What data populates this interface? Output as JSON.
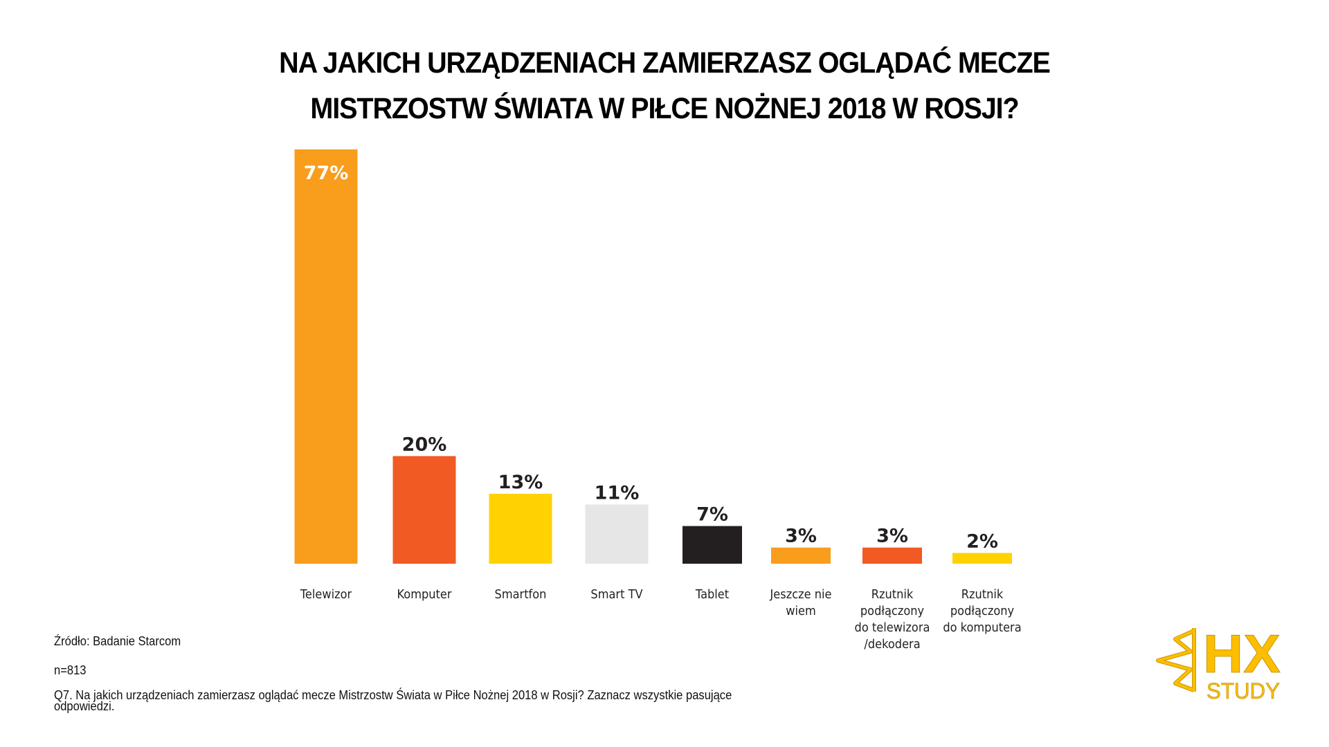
{
  "header": {
    "title_line1": "NA JAKICH URZĄDZENIACH ZAMIERZASZ OGLĄDAĆ MECZE",
    "title_line2": "MISTRZOSTW ŚWIATA W PIŁCE NOŻNEJ 2018 W ROSJI?"
  },
  "chart_data": {
    "type": "bar",
    "title": "NA JAKICH URZĄDZENIACH ZAMIERZASZ OGLĄDAĆ MECZE MISTRZOSTW ŚWIATA W PIŁCE NOŻNEJ 2018 W ROSJI?",
    "xlabel": "",
    "ylabel": "",
    "ylim": [
      0,
      77
    ],
    "grid": false,
    "unit": "%",
    "categories": [
      "Telewizor",
      "Komputer",
      "Smartfon",
      "Smart TV",
      "Tablet",
      "Jeszcze nie wiem",
      "Rzutnik podłączony do telewizora /dekodera",
      "Rzutnik podłączony do komputera"
    ],
    "category_lines": [
      [
        "Telewizor"
      ],
      [
        "Komputer"
      ],
      [
        "Smartfon"
      ],
      [
        "Smart TV"
      ],
      [
        "Tablet"
      ],
      [
        "Jeszcze nie",
        "wiem"
      ],
      [
        "Rzutnik",
        "podłączony",
        "do telewizora",
        "/dekodera"
      ],
      [
        "Rzutnik",
        "podłączony",
        "do komputera"
      ]
    ],
    "values": [
      77,
      20,
      13,
      11,
      7,
      3,
      3,
      2
    ],
    "value_labels": [
      "77%",
      "20%",
      "13%",
      "11%",
      "7%",
      "3%",
      "3%",
      "2%"
    ],
    "colors": [
      "#F99D1C",
      "#F15A22",
      "#FFD200",
      "#E6E6E6",
      "#231F20",
      "#F99D1C",
      "#F15A22",
      "#FFD200"
    ],
    "label_inside_first": true
  },
  "footer": {
    "source": "Źródło: Badanie Starcom",
    "sample": "n=813",
    "question_line1": "Q7. Na jakich urządzeniach zamierzasz oglądać mecze Mistrzostw Świata w Piłce Nożnej 2018 w Rosji? Zaznacz wszystkie pasujące",
    "question_line2": "odpowiedzi."
  },
  "logo": {
    "brand_top": "HX",
    "brand_bottom": "STUDY",
    "icon": "half-star-icon",
    "color": "#FDBE00"
  }
}
